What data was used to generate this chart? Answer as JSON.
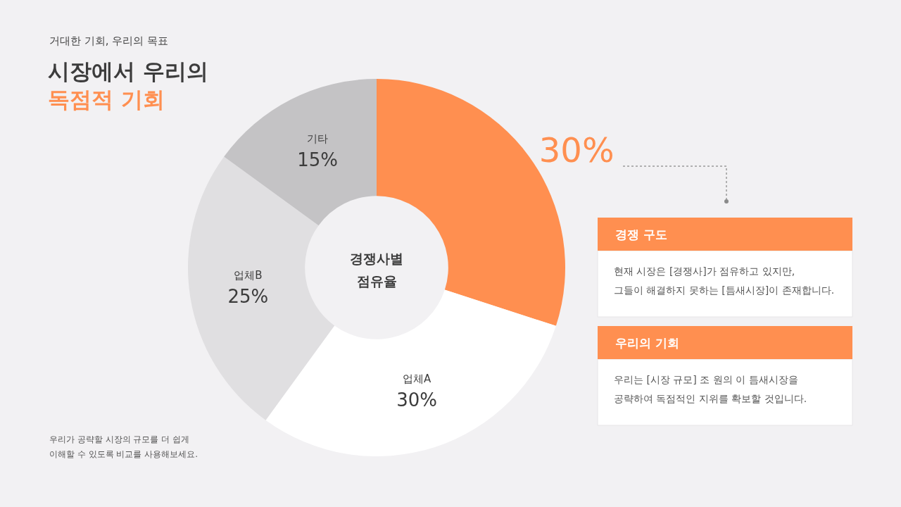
{
  "chart_data": {
    "type": "donut",
    "title": "시장에서 우리의\n독점적 기회",
    "subtitle": "거대한 기회, 우리의 목표",
    "categories": [
      null,
      "업체A",
      "업체B",
      "기타"
    ],
    "values": [
      30,
      30,
      25,
      15
    ],
    "colors": [
      "#ff8f50",
      "#ffffff",
      "#e0dfe1",
      "#c4c3c5"
    ],
    "value_labels": [
      "30%",
      "30%",
      "25%",
      "15%"
    ],
    "annotations": [
      "경쟁사별\n점유율",
      "경쟁 구도",
      "현재 시장은 [경쟁사]가 점유하고 있지만,\n그들이 해결하지 못하는 [틈새시장]이 존재합니다.",
      "우리의 기회",
      "우리는 [시장 규모] 조 원의 이 틈새시장을\n공략하여 독점적인 지위를 확보할 것입니다.",
      "우리가 공략할 시장의 규모를 더 쉽게\n이해할 수 있도록 비교를 사용해보세요."
    ]
  }
}
